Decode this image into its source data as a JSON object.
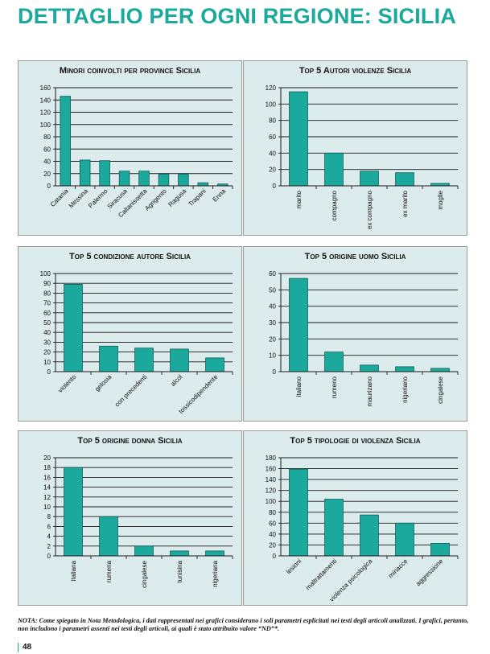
{
  "page": {
    "title": "DETTAGLIO PER OGNI REGIONE: SICILIA",
    "note": "NOTA: Come spiegato in Nota Metodologica, i dati rappresentati nei grafici considerano i soli parametri esplicitati nei testi degli articoli analizzati. I grafici, pertanto, non includono i parametri assenti nei testi degli articoli, ai quali è stato attribuito valore “ND”*.",
    "page_number": "48"
  },
  "colors": {
    "accent": "#1aa99c",
    "bar": "#1aa99c",
    "bar_stroke": "#0d5e57",
    "panel_bg": "#dcebec"
  },
  "chart_data": [
    {
      "type": "bar",
      "title": "Minori coinvolti per province Sicilia",
      "categories": [
        "Catania",
        "Messina",
        "Palermo",
        "Siracusa",
        "Caltanissetta",
        "Agrigento",
        "Ragusa",
        "Trapani",
        "Enna"
      ],
      "values": [
        146,
        42,
        41,
        24,
        24,
        19,
        19,
        5,
        3
      ],
      "ylim": [
        0,
        160
      ],
      "yticks": [
        0,
        20,
        40,
        60,
        80,
        100,
        120,
        140,
        160
      ],
      "label_rotation": -45,
      "grid": true
    },
    {
      "type": "bar",
      "title": "Top 5 Autori violenze Sicilia",
      "categories": [
        "marito",
        "compagno",
        "ex compagno",
        "ex marito",
        "moglie"
      ],
      "values": [
        115,
        40,
        18,
        16,
        3
      ],
      "ylim": [
        0,
        120
      ],
      "yticks": [
        0,
        20,
        40,
        60,
        80,
        100,
        120
      ],
      "label_rotation": -90,
      "grid": true
    },
    {
      "type": "bar",
      "title": "Top 5 condizione autore Sicilia",
      "categories": [
        "violento",
        "gelosia",
        "con precedenti",
        "alcol",
        "tossicodipendente"
      ],
      "values": [
        89,
        26,
        24,
        23,
        14
      ],
      "ylim": [
        0,
        100
      ],
      "yticks": [
        0,
        10,
        20,
        30,
        40,
        50,
        60,
        70,
        80,
        90,
        100
      ],
      "label_rotation": -45,
      "grid": true
    },
    {
      "type": "bar",
      "title": "Top 5 origine uomo Sicilia",
      "categories": [
        "italiano",
        "rumeno",
        "maurizano",
        "nigeriano",
        "cingalese"
      ],
      "values": [
        57,
        12,
        4,
        3,
        2
      ],
      "ylim": [
        0,
        60
      ],
      "yticks": [
        0,
        10,
        20,
        30,
        40,
        50,
        60
      ],
      "label_rotation": -90,
      "grid": true
    },
    {
      "type": "bar",
      "title": "Top 5 origine donna Sicilia",
      "categories": [
        "italiana",
        "rumena",
        "cingalese",
        "tunisina",
        "nigeriana"
      ],
      "values": [
        18,
        8,
        2,
        1,
        1
      ],
      "ylim": [
        0,
        20
      ],
      "yticks": [
        0,
        2,
        4,
        6,
        8,
        10,
        12,
        14,
        16,
        18,
        20
      ],
      "label_rotation": -90,
      "grid": true
    },
    {
      "type": "bar",
      "title": "Top 5 tipologie di violenza Sicilia",
      "categories": [
        "lesioni",
        "maltrattamenti",
        "violenza psicologica",
        "minacce",
        "aggressione"
      ],
      "values": [
        159,
        104,
        75,
        60,
        23
      ],
      "ylim": [
        0,
        180
      ],
      "yticks": [
        0,
        20,
        40,
        60,
        80,
        100,
        120,
        140,
        160,
        180
      ],
      "label_rotation": -45,
      "grid": true
    }
  ]
}
